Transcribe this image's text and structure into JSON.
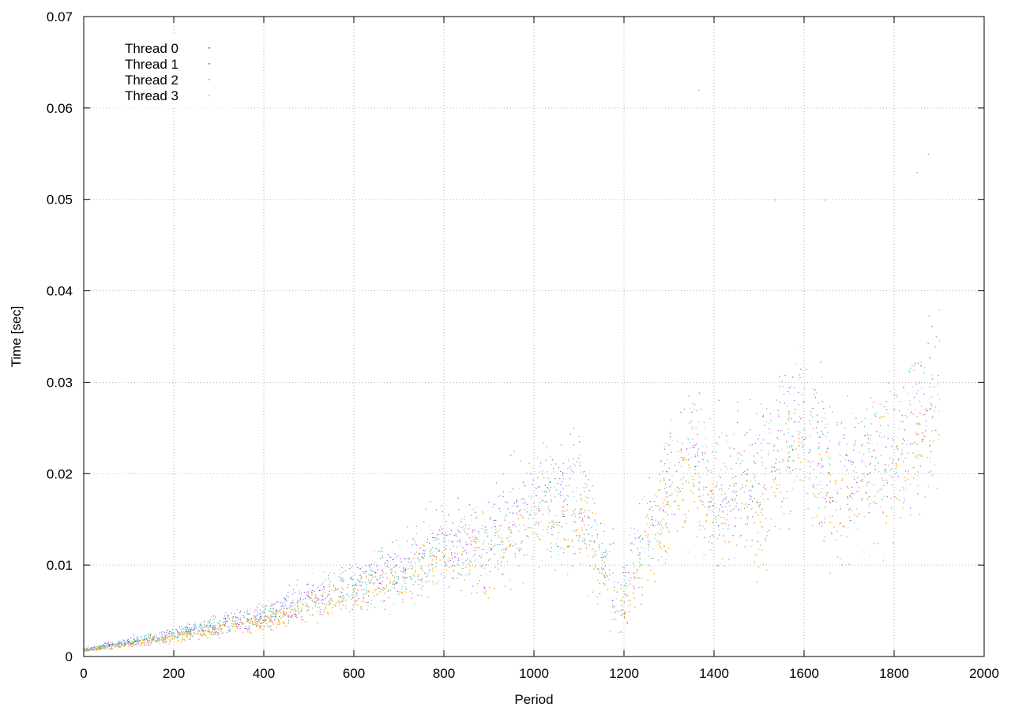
{
  "chart_data": {
    "type": "scatter",
    "title": "",
    "xlabel": "Period",
    "ylabel": "Time [sec]",
    "xlim": [
      0,
      2000
    ],
    "ylim": [
      0,
      0.07
    ],
    "xticks": [
      "0",
      "200",
      "400",
      "600",
      "800",
      "1000",
      "1200",
      "1400",
      "1600",
      "1800",
      "2000"
    ],
    "yticks": [
      "0",
      "0.01",
      "0.02",
      "0.03",
      "0.04",
      "0.05",
      "0.06",
      "0.07"
    ],
    "grid": true,
    "legend_position": "top-left",
    "series": [
      {
        "name": "Thread 0",
        "color": "#9400d3"
      },
      {
        "name": "Thread 1",
        "color": "#009e73"
      },
      {
        "name": "Thread 2",
        "color": "#56b4e9"
      },
      {
        "name": "Thread 3",
        "color": "#ffa500"
      }
    ],
    "trend": {
      "x": [
        0,
        100,
        200,
        300,
        400,
        500,
        600,
        700,
        800,
        900,
        1000,
        1100,
        1150,
        1200,
        1250,
        1300,
        1350,
        1400,
        1450,
        1500,
        1550,
        1600,
        1650,
        1700,
        1800,
        1900
      ],
      "y_center": [
        0.0008,
        0.0016,
        0.0025,
        0.0035,
        0.0045,
        0.0065,
        0.008,
        0.0095,
        0.012,
        0.0125,
        0.017,
        0.018,
        0.01,
        0.007,
        0.013,
        0.02,
        0.023,
        0.017,
        0.02,
        0.018,
        0.024,
        0.026,
        0.02,
        0.02,
        0.023,
        0.028
      ],
      "y_spread": [
        0.0003,
        0.0008,
        0.0012,
        0.0018,
        0.0025,
        0.004,
        0.0045,
        0.006,
        0.008,
        0.009,
        0.011,
        0.012,
        0.01,
        0.008,
        0.01,
        0.012,
        0.013,
        0.012,
        0.014,
        0.015,
        0.016,
        0.016,
        0.015,
        0.015,
        0.016,
        0.017
      ]
    },
    "points_per_series": 950,
    "notable_points": [
      {
        "x": 1365,
        "y": 0.062
      },
      {
        "x": 1875,
        "y": 0.055
      },
      {
        "x": 1535,
        "y": 0.05
      },
      {
        "x": 1645,
        "y": 0.05
      },
      {
        "x": 1850,
        "y": 0.053
      }
    ]
  }
}
